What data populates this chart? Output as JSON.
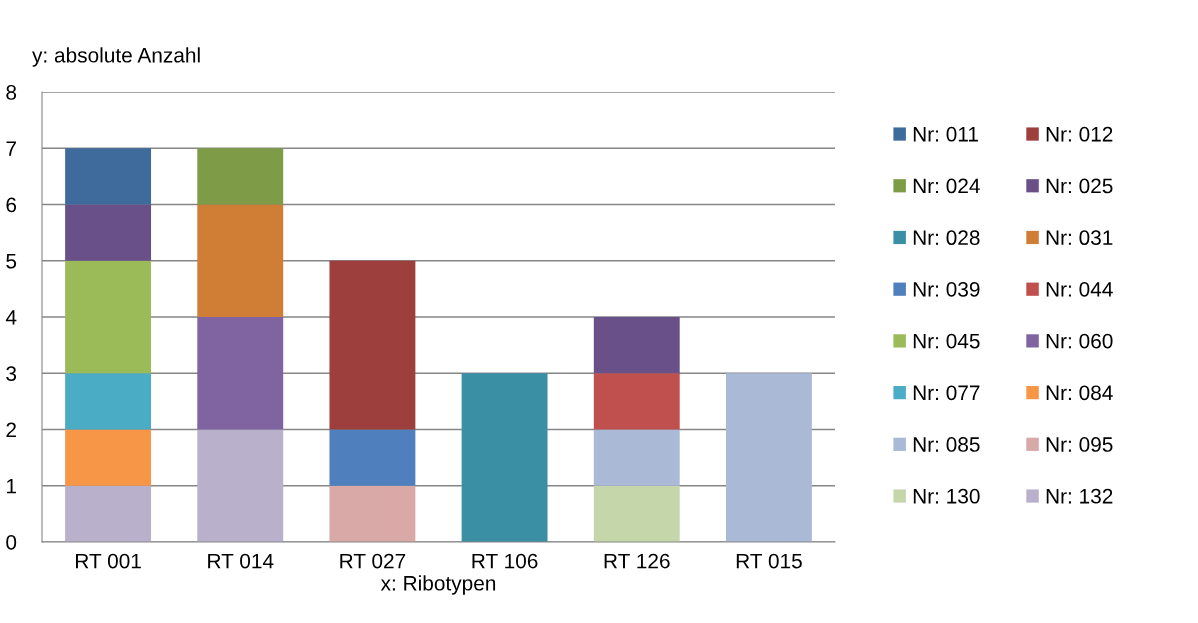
{
  "chart_data": {
    "type": "bar",
    "stacked": true,
    "ylabel": "y: absolute Anzahl",
    "xlabel": "x: Ribotypen",
    "categories": [
      "RT 001",
      "RT 014",
      "RT 027",
      "RT 106",
      "RT 126",
      "RT 015"
    ],
    "ylim": [
      0,
      8
    ],
    "yticks": [
      0,
      1,
      2,
      3,
      4,
      5,
      6,
      7,
      8
    ],
    "grid": "y",
    "legend": "right",
    "series": [
      {
        "name": "Nr: 132",
        "color": "#b9b0cc",
        "values": [
          1,
          2,
          0,
          0,
          0,
          0
        ]
      },
      {
        "name": "Nr: 130",
        "color": "#c6d6ab",
        "values": [
          0,
          0,
          0,
          0,
          1,
          0
        ]
      },
      {
        "name": "Nr: 095",
        "color": "#d9a9a8",
        "values": [
          0,
          0,
          1,
          0,
          0,
          0
        ]
      },
      {
        "name": "Nr: 085",
        "color": "#a9b9d6",
        "values": [
          0,
          0,
          0,
          0,
          1,
          3
        ]
      },
      {
        "name": "Nr: 084",
        "color": "#f79646",
        "values": [
          1,
          0,
          0,
          0,
          0,
          0
        ]
      },
      {
        "name": "Nr: 077",
        "color": "#4bacc6",
        "values": [
          1,
          0,
          0,
          0,
          0,
          0
        ]
      },
      {
        "name": "Nr: 060",
        "color": "#8064a2",
        "values": [
          0,
          2,
          0,
          0,
          0,
          0
        ]
      },
      {
        "name": "Nr: 045",
        "color": "#9bbb59",
        "values": [
          2,
          0,
          0,
          0,
          0,
          0
        ]
      },
      {
        "name": "Nr: 044",
        "color": "#c0504d",
        "values": [
          0,
          0,
          0,
          0,
          1,
          0
        ]
      },
      {
        "name": "Nr: 039",
        "color": "#4f80bd",
        "values": [
          0,
          0,
          1,
          0,
          0,
          0
        ]
      },
      {
        "name": "Nr: 031",
        "color": "#d07d35",
        "values": [
          0,
          2,
          0,
          0,
          0,
          0
        ]
      },
      {
        "name": "Nr: 028",
        "color": "#3b8fa5",
        "values": [
          0,
          0,
          0,
          3,
          0,
          0
        ]
      },
      {
        "name": "Nr: 025",
        "color": "#6a5089",
        "values": [
          1,
          0,
          0,
          0,
          1,
          0
        ]
      },
      {
        "name": "Nr: 024",
        "color": "#7e9b47",
        "values": [
          0,
          1,
          0,
          0,
          0,
          0
        ]
      },
      {
        "name": "Nr: 012",
        "color": "#9c3f3d",
        "values": [
          0,
          0,
          3,
          0,
          0,
          0
        ]
      },
      {
        "name": "Nr: 011",
        "color": "#3e6a9c",
        "values": [
          1,
          0,
          0,
          0,
          0,
          0
        ]
      }
    ]
  }
}
